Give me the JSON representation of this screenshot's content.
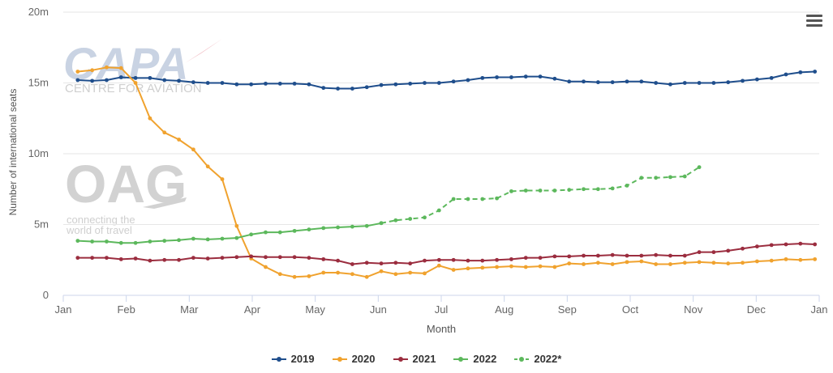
{
  "watermarks": {
    "capa_name": "CAPA",
    "capa_sub": "CENTRE FOR AVIATION",
    "oag_name": "OAG",
    "oag_sub_1": "connecting the",
    "oag_sub_2": "world of travel"
  },
  "chart_data": {
    "type": "line",
    "title": "",
    "xlabel": "Month",
    "ylabel": "Number of international seats",
    "x_tick_labels": [
      "Jan",
      "Feb",
      "Mar",
      "Apr",
      "May",
      "Jun",
      "Jul",
      "Aug",
      "Sep",
      "Oct",
      "Nov",
      "Dec",
      "Jan"
    ],
    "y_tick_labels": [
      "0",
      "5m",
      "10m",
      "15m",
      "20m"
    ],
    "ylim": [
      0,
      20
    ],
    "y_unit": "millions",
    "xlim": [
      0,
      52.3
    ],
    "x_unit": "week of year",
    "grid": true,
    "legend_position": "bottom",
    "series": [
      {
        "name": "2019",
        "color": "#1f4e8c",
        "dashed": false,
        "x": [
          1,
          2,
          3,
          4,
          5,
          6,
          7,
          8,
          9,
          10,
          11,
          12,
          13,
          14,
          15,
          16,
          17,
          18,
          19,
          20,
          21,
          22,
          23,
          24,
          25,
          26,
          27,
          28,
          29,
          30,
          31,
          32,
          33,
          34,
          35,
          36,
          37,
          38,
          39,
          40,
          41,
          42,
          43,
          44,
          45,
          46,
          47,
          48,
          49,
          50,
          51,
          52
        ],
        "y": [
          15.2,
          15.15,
          15.2,
          15.4,
          15.35,
          15.35,
          15.2,
          15.15,
          15.05,
          15.0,
          15.0,
          14.9,
          14.9,
          14.95,
          14.95,
          14.95,
          14.9,
          14.65,
          14.6,
          14.6,
          14.7,
          14.85,
          14.9,
          14.95,
          15.0,
          15.0,
          15.1,
          15.2,
          15.35,
          15.4,
          15.4,
          15.45,
          15.45,
          15.3,
          15.1,
          15.1,
          15.05,
          15.05,
          15.1,
          15.1,
          15.0,
          14.9,
          15.0,
          15.0,
          15.0,
          15.05,
          15.15,
          15.25,
          15.35,
          15.6,
          15.75,
          15.8
        ]
      },
      {
        "name": "2020",
        "color": "#f0a22e",
        "dashed": false,
        "x": [
          1,
          2,
          3,
          4,
          5,
          6,
          7,
          8,
          9,
          10,
          11,
          12,
          13,
          14,
          15,
          16,
          17,
          18,
          19,
          20,
          21,
          22,
          23,
          24,
          25,
          26,
          27,
          28,
          29,
          30,
          31,
          32,
          33,
          34,
          35,
          36,
          37,
          38,
          39,
          40,
          41,
          42,
          43,
          44,
          45,
          46,
          47,
          48,
          49,
          50,
          51,
          52
        ],
        "y": [
          15.8,
          15.9,
          16.1,
          16.05,
          15.0,
          12.5,
          11.5,
          11.0,
          10.3,
          9.1,
          8.2,
          4.9,
          2.6,
          2.0,
          1.5,
          1.3,
          1.35,
          1.6,
          1.6,
          1.5,
          1.3,
          1.7,
          1.5,
          1.6,
          1.55,
          2.1,
          1.8,
          1.9,
          1.95,
          2.0,
          2.05,
          2.0,
          2.05,
          2.0,
          2.25,
          2.2,
          2.3,
          2.2,
          2.35,
          2.4,
          2.2,
          2.2,
          2.3,
          2.35,
          2.3,
          2.25,
          2.3,
          2.4,
          2.45,
          2.55,
          2.5,
          2.55
        ]
      },
      {
        "name": "2021",
        "color": "#9b2d3f",
        "dashed": false,
        "x": [
          1,
          2,
          3,
          4,
          5,
          6,
          7,
          8,
          9,
          10,
          11,
          12,
          13,
          14,
          15,
          16,
          17,
          18,
          19,
          20,
          21,
          22,
          23,
          24,
          25,
          26,
          27,
          28,
          29,
          30,
          31,
          32,
          33,
          34,
          35,
          36,
          37,
          38,
          39,
          40,
          41,
          42,
          43,
          44,
          45,
          46,
          47,
          48,
          49,
          50,
          51,
          52
        ],
        "y": [
          2.65,
          2.65,
          2.65,
          2.55,
          2.6,
          2.45,
          2.5,
          2.5,
          2.65,
          2.6,
          2.65,
          2.7,
          2.75,
          2.7,
          2.7,
          2.7,
          2.65,
          2.55,
          2.45,
          2.2,
          2.3,
          2.25,
          2.3,
          2.25,
          2.45,
          2.5,
          2.5,
          2.45,
          2.45,
          2.5,
          2.55,
          2.65,
          2.65,
          2.75,
          2.75,
          2.8,
          2.8,
          2.85,
          2.8,
          2.8,
          2.85,
          2.8,
          2.8,
          3.05,
          3.05,
          3.15,
          3.3,
          3.45,
          3.55,
          3.6,
          3.65,
          3.6
        ]
      },
      {
        "name": "2022",
        "color": "#5cb85c",
        "dashed": false,
        "x": [
          1,
          2,
          3,
          4,
          5,
          6,
          7,
          8,
          9,
          10,
          11,
          12,
          13,
          14,
          15,
          16,
          17,
          18,
          19,
          20,
          21,
          22
        ],
        "y": [
          3.85,
          3.8,
          3.8,
          3.7,
          3.7,
          3.8,
          3.85,
          3.9,
          4.0,
          3.95,
          4.0,
          4.05,
          4.3,
          4.45,
          4.45,
          4.55,
          4.65,
          4.75,
          4.8,
          4.85,
          4.9,
          5.1
        ]
      },
      {
        "name": "2022*",
        "color": "#5cb85c",
        "dashed": true,
        "x": [
          22,
          23,
          24,
          25,
          26,
          27,
          28,
          29,
          30,
          31,
          32,
          33,
          34,
          35,
          36,
          37,
          38,
          39,
          40,
          41,
          42,
          43,
          44
        ],
        "y": [
          5.1,
          5.3,
          5.4,
          5.5,
          6.0,
          6.8,
          6.8,
          6.8,
          6.85,
          7.35,
          7.4,
          7.4,
          7.4,
          7.45,
          7.5,
          7.5,
          7.55,
          7.75,
          8.3,
          8.3,
          8.35,
          8.4,
          9.05
        ]
      }
    ]
  }
}
